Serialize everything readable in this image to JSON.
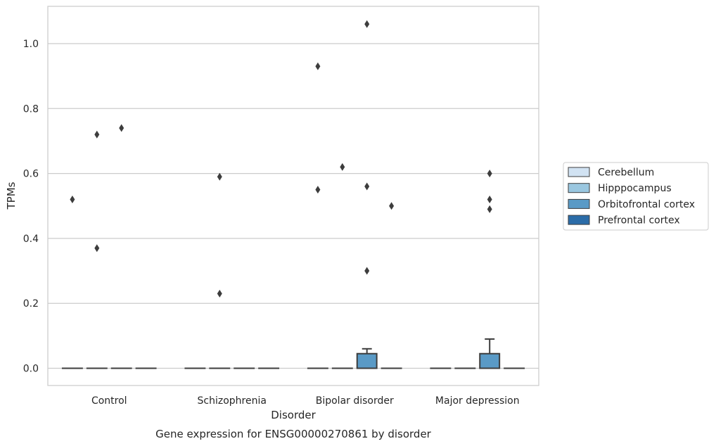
{
  "chart_data": {
    "type": "box",
    "title": "Gene expression for ENSG00000270861 by disorder",
    "xlabel": "Disorder",
    "ylabel": "TPMs",
    "ylim": [
      -0.05,
      1.12
    ],
    "yticks": [
      0.0,
      0.2,
      0.4,
      0.6,
      0.8,
      1.0
    ],
    "ytick_labels": [
      "0.0",
      "0.2",
      "0.4",
      "0.6",
      "0.8",
      "1.0"
    ],
    "categories": [
      "Control",
      "Schizophrenia",
      "Bipolar disorder",
      "Major depression"
    ],
    "grid": "horizontal",
    "legend_position": "right",
    "series": [
      {
        "name": "Cerebellum",
        "color": "#d1e2f2",
        "boxes": [
          {
            "q1": 0,
            "median": 0,
            "q3": 0,
            "whisker_low": 0,
            "whisker_high": 0,
            "outliers": [
              0.52
            ]
          },
          {
            "q1": 0,
            "median": 0,
            "q3": 0,
            "whisker_low": 0,
            "whisker_high": 0,
            "outliers": []
          },
          {
            "q1": 0,
            "median": 0,
            "q3": 0,
            "whisker_low": 0,
            "whisker_high": 0,
            "outliers": [
              0.93,
              0.55
            ]
          },
          {
            "q1": 0,
            "median": 0,
            "q3": 0,
            "whisker_low": 0,
            "whisker_high": 0,
            "outliers": []
          }
        ]
      },
      {
        "name": "Hipppocampus",
        "color": "#9ac7e0",
        "boxes": [
          {
            "q1": 0,
            "median": 0,
            "q3": 0,
            "whisker_low": 0,
            "whisker_high": 0,
            "outliers": [
              0.72,
              0.37
            ]
          },
          {
            "q1": 0,
            "median": 0,
            "q3": 0,
            "whisker_low": 0,
            "whisker_high": 0,
            "outliers": [
              0.59,
              0.23
            ]
          },
          {
            "q1": 0,
            "median": 0,
            "q3": 0,
            "whisker_low": 0,
            "whisker_high": 0,
            "outliers": [
              0.62
            ]
          },
          {
            "q1": 0,
            "median": 0,
            "q3": 0,
            "whisker_low": 0,
            "whisker_high": 0,
            "outliers": []
          }
        ]
      },
      {
        "name": "Orbitofrontal cortex",
        "color": "#5a9ac6",
        "boxes": [
          {
            "q1": 0,
            "median": 0,
            "q3": 0,
            "whisker_low": 0,
            "whisker_high": 0,
            "outliers": [
              0.74
            ]
          },
          {
            "q1": 0,
            "median": 0,
            "q3": 0,
            "whisker_low": 0,
            "whisker_high": 0,
            "outliers": []
          },
          {
            "q1": 0,
            "median": 0,
            "q3": 0.045,
            "whisker_low": 0,
            "whisker_high": 0.06,
            "outliers": [
              1.06,
              0.56,
              0.3
            ]
          },
          {
            "q1": 0,
            "median": 0,
            "q3": 0.045,
            "whisker_low": 0,
            "whisker_high": 0.09,
            "outliers": [
              0.6,
              0.52,
              0.49
            ]
          }
        ]
      },
      {
        "name": "Prefrontal cortex",
        "color": "#2b6ca8",
        "boxes": [
          {
            "q1": 0,
            "median": 0,
            "q3": 0,
            "whisker_low": 0,
            "whisker_high": 0,
            "outliers": []
          },
          {
            "q1": 0,
            "median": 0,
            "q3": 0,
            "whisker_low": 0,
            "whisker_high": 0,
            "outliers": []
          },
          {
            "q1": 0,
            "median": 0,
            "q3": 0,
            "whisker_low": 0,
            "whisker_high": 0,
            "outliers": [
              0.5
            ]
          },
          {
            "q1": 0,
            "median": 0,
            "q3": 0,
            "whisker_low": 0,
            "whisker_high": 0,
            "outliers": []
          }
        ]
      }
    ]
  }
}
